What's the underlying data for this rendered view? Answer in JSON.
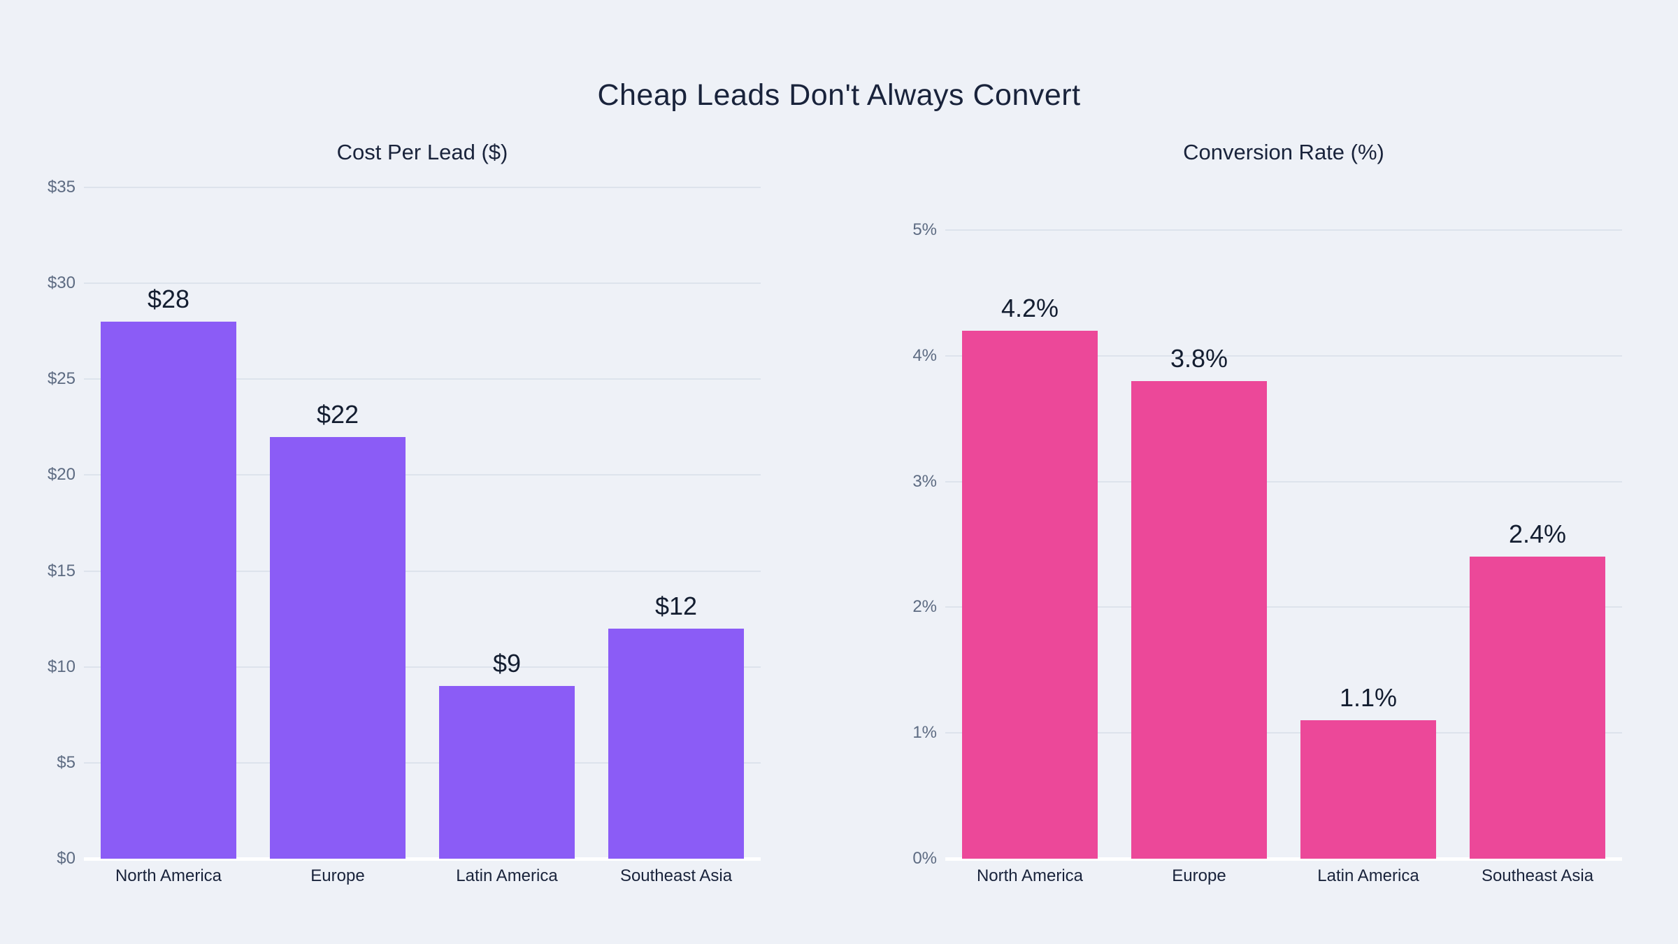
{
  "page": {
    "title": "Cheap Leads Don't Always Convert",
    "background_color": "#EEF1F7",
    "title_color": "#19233B",
    "tick_label_color": "#5D6B82",
    "gridline_color": "#DDE3EC",
    "baseline_color": "#FFFFFF"
  },
  "chart_data": [
    {
      "type": "bar",
      "title": "Cost Per Lead ($)",
      "categories": [
        "North America",
        "Europe",
        "Latin America",
        "Southeast Asia"
      ],
      "values": [
        28,
        22,
        9,
        12
      ],
      "value_labels": [
        "$28",
        "$22",
        "$9",
        "$12"
      ],
      "bar_color": "#8B5CF6",
      "ylim": [
        0,
        35
      ],
      "yticks": [
        {
          "value": 0,
          "label": "$0"
        },
        {
          "value": 5,
          "label": "$5"
        },
        {
          "value": 10,
          "label": "$10"
        },
        {
          "value": 15,
          "label": "$15"
        },
        {
          "value": 20,
          "label": "$20"
        },
        {
          "value": 25,
          "label": "$25"
        },
        {
          "value": 30,
          "label": "$30"
        },
        {
          "value": 35,
          "label": "$35"
        }
      ],
      "grid": true,
      "legend": false
    },
    {
      "type": "bar",
      "title": "Conversion Rate (%)",
      "categories": [
        "North America",
        "Europe",
        "Latin America",
        "Southeast Asia"
      ],
      "values": [
        4.2,
        3.8,
        1.1,
        2.4
      ],
      "value_labels": [
        "4.2%",
        "3.8%",
        "1.1%",
        "2.4%"
      ],
      "bar_color": "#EC4899",
      "ylim": [
        0,
        5
      ],
      "yticks": [
        {
          "value": 0,
          "label": "0%"
        },
        {
          "value": 1,
          "label": "1%"
        },
        {
          "value": 2,
          "label": "2%"
        },
        {
          "value": 3,
          "label": "3%"
        },
        {
          "value": 4,
          "label": "4%"
        },
        {
          "value": 5,
          "label": "5%"
        }
      ],
      "grid": true,
      "legend": false
    }
  ]
}
